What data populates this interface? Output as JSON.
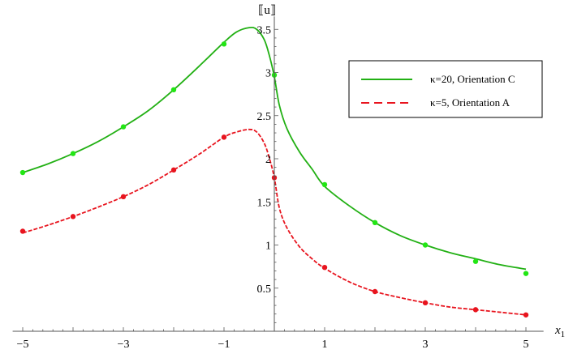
{
  "chart_data": {
    "type": "line",
    "title": "",
    "xlabel": "x",
    "xlabel_sub": "1",
    "ylabel": "⟦u⟧",
    "xlim": [
      -5.2,
      5.35
    ],
    "ylim": [
      0,
      3.65
    ],
    "x_ticks": [
      -5,
      -3,
      -1,
      1,
      3,
      5
    ],
    "x_tick_labels": [
      "−5",
      "−3",
      "−1",
      "1",
      "3",
      "5"
    ],
    "y_ticks": [
      0.5,
      1,
      1.5,
      2,
      2.5,
      3,
      3.5
    ],
    "y_tick_labels": [
      "0.5",
      "1",
      "1.5",
      "2",
      "2.5",
      "3",
      "3.5"
    ],
    "grid": false,
    "legend_position": "top-right",
    "series": [
      {
        "name": "κ=20, Orientation C",
        "color": "#22b014",
        "dash": "solid",
        "curve_x": [
          -5,
          -4.5,
          -4,
          -3.5,
          -3,
          -2.5,
          -2,
          -1.5,
          -1,
          -0.75,
          -0.5,
          -0.35,
          -0.2,
          -0.1,
          0,
          0.1,
          0.25,
          0.5,
          0.75,
          1,
          1.5,
          2,
          2.5,
          3,
          3.5,
          4,
          4.5,
          5
        ],
        "curve_y": [
          1.84,
          1.94,
          2.06,
          2.2,
          2.37,
          2.56,
          2.8,
          3.07,
          3.35,
          3.47,
          3.52,
          3.5,
          3.38,
          3.2,
          2.95,
          2.62,
          2.35,
          2.08,
          1.88,
          1.68,
          1.45,
          1.26,
          1.11,
          1.0,
          0.91,
          0.84,
          0.77,
          0.72
        ],
        "points_x": [
          -5,
          -4,
          -3,
          -2,
          -1,
          0,
          1,
          2,
          3,
          4,
          5
        ],
        "points_y": [
          1.84,
          2.06,
          2.37,
          2.8,
          3.33,
          2.97,
          1.7,
          1.26,
          1.0,
          0.81,
          0.67
        ],
        "point_color": "#22e614"
      },
      {
        "name": "κ=5, Orientation A",
        "color": "#e8141e",
        "dash": "dashed",
        "curve_x": [
          -5,
          -4.5,
          -4,
          -3.5,
          -3,
          -2.5,
          -2,
          -1.5,
          -1,
          -0.75,
          -0.5,
          -0.35,
          -0.2,
          -0.1,
          0,
          0.1,
          0.25,
          0.5,
          0.75,
          1,
          1.5,
          2,
          2.5,
          3,
          3.5,
          4,
          4.5,
          5
        ],
        "curve_y": [
          1.14,
          1.23,
          1.33,
          1.44,
          1.56,
          1.7,
          1.87,
          2.05,
          2.25,
          2.31,
          2.34,
          2.31,
          2.18,
          2.01,
          1.78,
          1.43,
          1.2,
          0.98,
          0.84,
          0.73,
          0.57,
          0.46,
          0.39,
          0.33,
          0.28,
          0.25,
          0.22,
          0.19
        ],
        "points_x": [
          -5,
          -4,
          -3,
          -2,
          -1,
          0,
          1,
          2,
          3,
          4,
          5
        ],
        "points_y": [
          1.16,
          1.33,
          1.56,
          1.87,
          2.25,
          1.78,
          0.74,
          0.46,
          0.33,
          0.25,
          0.19
        ],
        "point_color": "#e8141e"
      }
    ]
  }
}
